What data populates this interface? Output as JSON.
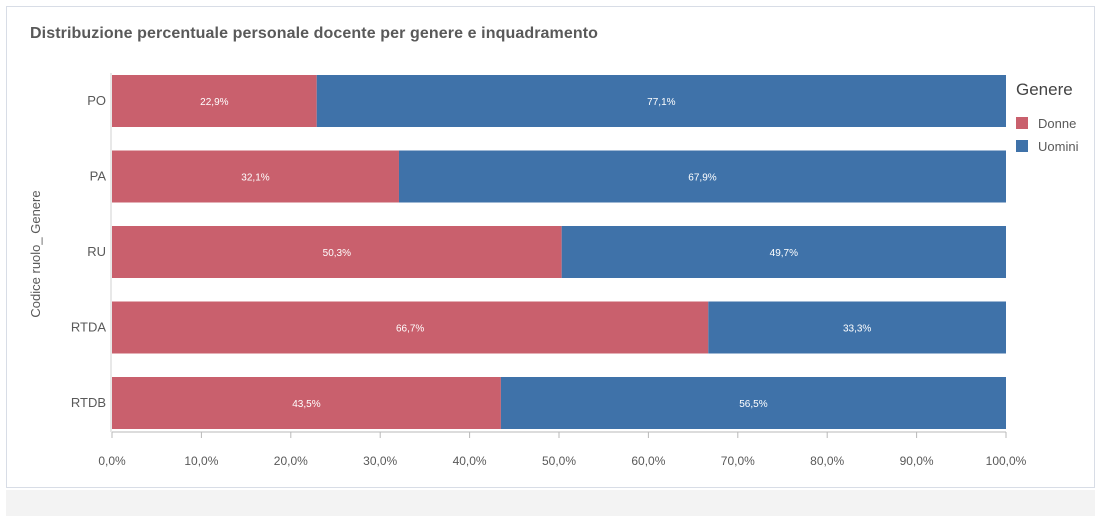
{
  "chart_data": {
    "type": "bar",
    "orientation": "horizontal",
    "stacked": true,
    "title": "Distribuzione percentuale personale docente per genere e inquadramento",
    "ylabel": "Codice ruolo_ Genere",
    "xlabel": "",
    "categories": [
      "PO",
      "PA",
      "RU",
      "RTDA",
      "RTDB"
    ],
    "series": [
      {
        "name": "Donne",
        "color": "#c9606d",
        "values": [
          22.9,
          32.1,
          50.3,
          66.7,
          43.5
        ],
        "labels": [
          "22,9%",
          "32,1%",
          "50,3%",
          "66,7%",
          "43,5%"
        ]
      },
      {
        "name": "Uomini",
        "color": "#3f72a9",
        "values": [
          77.1,
          67.9,
          49.7,
          33.3,
          56.5
        ],
        "labels": [
          "77,1%",
          "67,9%",
          "49,7%",
          "33,3%",
          "56,5%"
        ]
      }
    ],
    "xlim": [
      0,
      100
    ],
    "xticks": [
      "0,0%",
      "10,0%",
      "20,0%",
      "30,0%",
      "40,0%",
      "50,0%",
      "60,0%",
      "70,0%",
      "80,0%",
      "90,0%",
      "100,0%"
    ],
    "legend": {
      "title": "Genere",
      "position": "right"
    },
    "grid": false
  }
}
